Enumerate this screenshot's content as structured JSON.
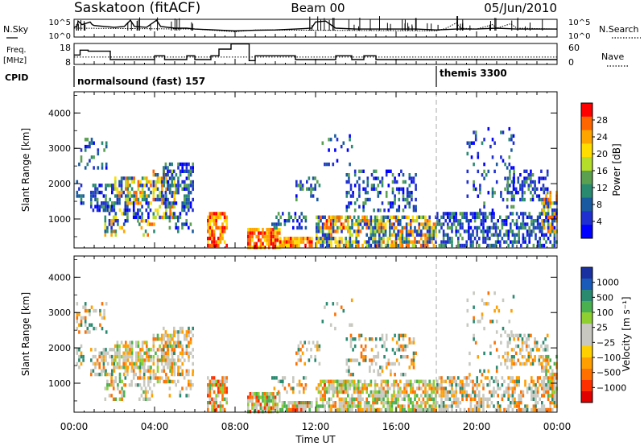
{
  "header": {
    "station": "Saskatoon (fitACF)",
    "beam": "Beam 00",
    "date": "05/Jun/2010"
  },
  "nsky_panel": {
    "left_label": "N.Sky",
    "right_label": "N.Search",
    "y_ticks_left": [
      "10^5",
      "10^0"
    ],
    "y_ticks_right": [
      "10^5",
      "10^0"
    ],
    "nsky_profile": [
      [
        0,
        0.55
      ],
      [
        0.15,
        0.62
      ],
      [
        0.2,
        0.9
      ],
      [
        0.4,
        0.7
      ],
      [
        0.8,
        0.85
      ],
      [
        0.9,
        0.7
      ],
      [
        1.0,
        0.65
      ],
      [
        2.0,
        0.55
      ],
      [
        2.5,
        0.6
      ],
      [
        2.8,
        0.95
      ],
      [
        3.0,
        0.6
      ],
      [
        3.6,
        0.55
      ],
      [
        4.1,
        0.95
      ],
      [
        4.3,
        0.6
      ],
      [
        5.0,
        0.5
      ],
      [
        5.6,
        0.5
      ],
      [
        6.0,
        0.45
      ],
      [
        7.0,
        0.4
      ],
      [
        8.0,
        0.35
      ],
      [
        9.0,
        0.38
      ],
      [
        10.0,
        0.4
      ],
      [
        11.0,
        0.45
      ],
      [
        11.8,
        0.5
      ],
      [
        12.0,
        0.85
      ],
      [
        12.5,
        0.9
      ],
      [
        13.0,
        0.5
      ],
      [
        14.0,
        0.45
      ],
      [
        15.0,
        0.45
      ],
      [
        16.0,
        0.45
      ],
      [
        17.0,
        0.45
      ],
      [
        18.0,
        0.4
      ],
      [
        19.0,
        0.45
      ],
      [
        20.0,
        0.45
      ],
      [
        21.0,
        0.5
      ],
      [
        22.0,
        0.45
      ],
      [
        23.0,
        0.45
      ],
      [
        24.0,
        0.45
      ]
    ],
    "nsearch_profile": [
      [
        0,
        0.5
      ],
      [
        6,
        0.45
      ],
      [
        8,
        0.3
      ],
      [
        9,
        0.4
      ],
      [
        18,
        0.35
      ],
      [
        18.5,
        0.5
      ],
      [
        19,
        0.8
      ],
      [
        19.2,
        0.5
      ],
      [
        20,
        0.45
      ],
      [
        20.8,
        0.7
      ],
      [
        21,
        0.5
      ],
      [
        21.7,
        0.75
      ],
      [
        22,
        0.5
      ],
      [
        24,
        0.45
      ]
    ]
  },
  "freq_panel": {
    "left_label_1": "Freq.",
    "left_label_2": "[MHz]",
    "right_label": "Nave",
    "y_ticks_left": [
      "18",
      "8"
    ],
    "y_ticks_right": [
      "60",
      "0"
    ],
    "freq_steps": [
      [
        0,
        12.5
      ],
      [
        0.3,
        14.8
      ],
      [
        0.7,
        14.3
      ],
      [
        1.8,
        10.3
      ],
      [
        4.0,
        12.1
      ],
      [
        4.5,
        10.3
      ],
      [
        5.6,
        12.1
      ],
      [
        6.0,
        10.3
      ],
      [
        6.8,
        12.1
      ],
      [
        7.2,
        15.3
      ],
      [
        7.8,
        17.8
      ],
      [
        8.7,
        9.8
      ],
      [
        9.0,
        12.1
      ],
      [
        11.0,
        10.3
      ],
      [
        13.0,
        12.1
      ],
      [
        13.8,
        10.3
      ],
      [
        14.4,
        12.1
      ],
      [
        15.0,
        10.3
      ],
      [
        16.0,
        10.3
      ],
      [
        17.0,
        10.3
      ],
      [
        18.0,
        10.3
      ],
      [
        24.0,
        10.3
      ]
    ],
    "nave_dotted_level": 11.5
  },
  "cpid_panel": {
    "label": "CPID",
    "entries": [
      {
        "start_hour": 0.0,
        "text": "normalsound (fast) 157"
      },
      {
        "start_hour": 18.0,
        "text": "themis 3300"
      }
    ]
  },
  "power_panel": {
    "ylabel": "Slant Range [km]",
    "colorbar_label": "Power [dB]",
    "colorbar_ticks": [
      "28",
      "24",
      "20",
      "16",
      "12",
      "8",
      "4"
    ],
    "colorbar_colors": [
      "#ff0000",
      "#ff6600",
      "#ffa500",
      "#ffdd00",
      "#b4dc2a",
      "#5aa050",
      "#2a8a70",
      "#1a5aa0",
      "#2030d0",
      "#0000ff"
    ],
    "y_ticks": [
      "4000",
      "3000",
      "2000",
      "1000"
    ]
  },
  "velocity_panel": {
    "ylabel": "Slant Range [km]",
    "colorbar_label": "Velocity [m s⁻¹]",
    "colorbar_ticks": [
      "1000",
      "500",
      "100",
      "25",
      "−25",
      "−100",
      "−500",
      "−1000"
    ],
    "colorbar_colors": [
      "#1a30a0",
      "#1a5ab8",
      "#2a8a70",
      "#4ab050",
      "#8fd030",
      "#c8c8c0",
      "#c8c8c0",
      "#ffd000",
      "#ffa000",
      "#ff7000",
      "#ff3000",
      "#e00000"
    ],
    "y_ticks": [
      "4000",
      "3000",
      "2000",
      "1000"
    ]
  },
  "chart_data": {
    "type": "heatmap",
    "title": "Saskatoon (fitACF)  Beam 00  05/Jun/2010",
    "xlabel": "Time UT",
    "ylabel": "Slant Range [km]",
    "x_ticks": [
      "00:00",
      "04:00",
      "08:00",
      "12:00",
      "16:00",
      "20:00",
      "00:00"
    ],
    "x_tick_hours": [
      0,
      4,
      8,
      12,
      16,
      20,
      24
    ],
    "xlim_hours": [
      0,
      24
    ],
    "ylim_km": [
      180,
      4600
    ],
    "clusters": [
      {
        "t0": 0.1,
        "t1": 0.5,
        "r0": 1400,
        "r1": 2100,
        "kind": "blue",
        "dens": 0.35
      },
      {
        "t0": 0.1,
        "t1": 1.6,
        "r0": 2400,
        "r1": 3300,
        "kind": "blue",
        "dens": 0.3
      },
      {
        "t0": 0.8,
        "t1": 2.0,
        "r0": 1200,
        "r1": 2000,
        "kind": "blue",
        "dens": 0.5
      },
      {
        "t0": 1.5,
        "t1": 2.5,
        "r0": 500,
        "r1": 1300,
        "kind": "mix",
        "dens": 0.55
      },
      {
        "t0": 2.0,
        "t1": 3.8,
        "r0": 1400,
        "r1": 2200,
        "kind": "mix",
        "dens": 0.65
      },
      {
        "t0": 2.5,
        "t1": 3.8,
        "r0": 900,
        "r1": 1500,
        "kind": "blue",
        "dens": 0.45
      },
      {
        "t0": 3.2,
        "t1": 4.0,
        "r0": 500,
        "r1": 1000,
        "kind": "mix",
        "dens": 0.5
      },
      {
        "t0": 3.9,
        "t1": 5.0,
        "r0": 1000,
        "r1": 2400,
        "kind": "mix",
        "dens": 0.55
      },
      {
        "t0": 4.4,
        "t1": 5.9,
        "r0": 1300,
        "r1": 2600,
        "kind": "blue",
        "dens": 0.5
      },
      {
        "t0": 4.6,
        "t1": 5.9,
        "r0": 600,
        "r1": 1300,
        "kind": "blue",
        "dens": 0.3
      },
      {
        "t0": 6.6,
        "t1": 7.6,
        "r0": 250,
        "r1": 1200,
        "kind": "hot",
        "dens": 0.75
      },
      {
        "t0": 8.6,
        "t1": 10.2,
        "r0": 200,
        "r1": 750,
        "kind": "hot",
        "dens": 0.85
      },
      {
        "t0": 10.2,
        "t1": 11.8,
        "r0": 200,
        "r1": 500,
        "kind": "hot",
        "dens": 0.85
      },
      {
        "t0": 9.8,
        "t1": 11.5,
        "r0": 700,
        "r1": 1200,
        "kind": "blue",
        "dens": 0.4
      },
      {
        "t0": 11.0,
        "t1": 12.2,
        "r0": 1500,
        "r1": 2200,
        "kind": "blue",
        "dens": 0.35
      },
      {
        "t0": 12.0,
        "t1": 18.0,
        "r0": 250,
        "r1": 1100,
        "kind": "mix",
        "dens": 0.7
      },
      {
        "t0": 12.4,
        "t1": 13.6,
        "r0": 700,
        "r1": 1100,
        "kind": "hot",
        "dens": 0.5
      },
      {
        "t0": 13.5,
        "t1": 17.0,
        "r0": 1200,
        "r1": 2400,
        "kind": "blue",
        "dens": 0.3
      },
      {
        "t0": 12.3,
        "t1": 13.8,
        "r0": 2500,
        "r1": 3400,
        "kind": "blue",
        "dens": 0.15
      },
      {
        "t0": 18.0,
        "t1": 24.0,
        "r0": 250,
        "r1": 1200,
        "kind": "blue",
        "dens": 0.55
      },
      {
        "t0": 19.5,
        "t1": 21.8,
        "r0": 1200,
        "r1": 3600,
        "kind": "blue",
        "dens": 0.12
      },
      {
        "t0": 21.5,
        "t1": 23.5,
        "r0": 1500,
        "r1": 2400,
        "kind": "blue",
        "dens": 0.5
      },
      {
        "t0": 23.2,
        "t1": 24.0,
        "r0": 600,
        "r1": 1800,
        "kind": "mix",
        "dens": 0.6
      }
    ]
  }
}
